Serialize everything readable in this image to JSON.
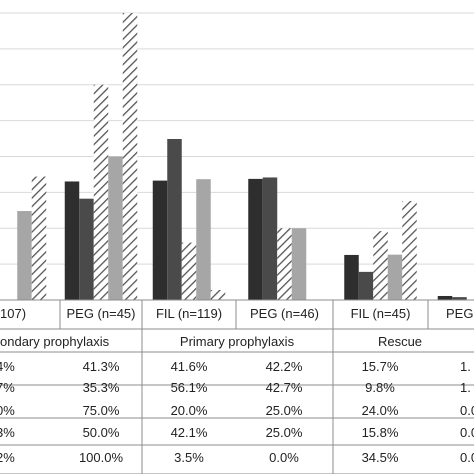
{
  "chart_data": {
    "type": "bar",
    "ylim": [
      0,
      100
    ],
    "grid": true,
    "series_styles": [
      {
        "fill": "#2e2e2e",
        "pattern": "solid"
      },
      {
        "fill": "#4a4a4a",
        "pattern": "solid"
      },
      {
        "fill": "#ffffff",
        "pattern": "diagonal-hatch"
      },
      {
        "fill": "#a6a6a6",
        "pattern": "solid"
      },
      {
        "fill": "#ffffff",
        "pattern": "diagonal-hatch"
      }
    ],
    "groups": [
      {
        "category": "107)",
        "group": "ondary prophylaxis",
        "values": [
          null,
          null,
          null,
          31.0,
          43.0
        ]
      },
      {
        "category": "PEG (n=45)",
        "group": "",
        "values": [
          41.3,
          35.3,
          75.0,
          50.0,
          100.0
        ]
      },
      {
        "category": "FIL (n=119)",
        "group": "Primary prophylaxis",
        "values": [
          41.6,
          56.1,
          20.0,
          42.1,
          3.5
        ]
      },
      {
        "category": "PEG (n=46)",
        "group": "",
        "values": [
          42.2,
          42.7,
          25.0,
          25.0,
          0.0
        ]
      },
      {
        "category": "FIL (n=45)",
        "group": "Rescue",
        "values": [
          15.7,
          9.8,
          24.0,
          15.8,
          34.5
        ]
      },
      {
        "category": "PEG",
        "group": "",
        "values": [
          1.4,
          1.0,
          0.0,
          0.0,
          0.0
        ]
      }
    ],
    "table": {
      "rows": [
        [
          "4%",
          "41.3%",
          "41.6%",
          "42.2%",
          "15.7%",
          "1."
        ],
        [
          "7%",
          "35.3%",
          "56.1%",
          "42.7%",
          "9.8%",
          "1."
        ],
        [
          "0%",
          "75.0%",
          "20.0%",
          "25.0%",
          "24.0%",
          "0.0"
        ],
        [
          "3%",
          "50.0%",
          "42.1%",
          "25.0%",
          "15.8%",
          "0.0"
        ],
        [
          "2%",
          "100.0%",
          "3.5%",
          "0.0%",
          "34.5%",
          "0.0"
        ]
      ]
    }
  }
}
